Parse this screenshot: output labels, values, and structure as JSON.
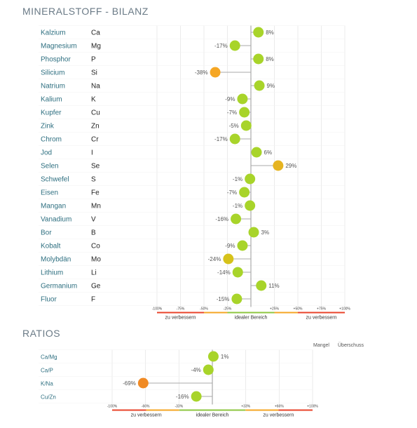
{
  "titles": {
    "main": "MINERALSTOFF - BILANZ",
    "ratios": "RATIOS"
  },
  "colors": {
    "green": "#a8d42a",
    "yellow": "#d6c21a",
    "orange": "#f5a623",
    "deep_orange": "#f08a24",
    "zone_red": "#e8432a",
    "zone_orange": "#f5a623",
    "zone_green": "#8cc63f",
    "label": "#2e6f80",
    "grid": "#e6e6e6"
  },
  "chart_data": [
    {
      "type": "dot",
      "title": "MINERALSTOFF - BILANZ",
      "xlim": [
        -100,
        100
      ],
      "ticks": [
        "-100%",
        "-75%",
        "-50%",
        "-25%",
        "",
        "+25%",
        "+50%",
        "+75%",
        "+100%"
      ],
      "zones": [
        "zu verbessern",
        "idealer Bereich",
        "zu verbessern"
      ],
      "rows": [
        {
          "name": "Kalzium",
          "symbol": "Ca",
          "value": 8,
          "label": "8%",
          "color": "#a8d42a"
        },
        {
          "name": "Magnesium",
          "symbol": "Mg",
          "value": -17,
          "label": "-17%",
          "color": "#a8d42a"
        },
        {
          "name": "Phosphor",
          "symbol": "P",
          "value": 8,
          "label": "8%",
          "color": "#a8d42a"
        },
        {
          "name": "Silicium",
          "symbol": "Si",
          "value": -38,
          "label": "-38%",
          "color": "#f5a623"
        },
        {
          "name": "Natrium",
          "symbol": "Na",
          "value": 9,
          "label": "9%",
          "color": "#a8d42a"
        },
        {
          "name": "Kalium",
          "symbol": "K",
          "value": -9,
          "label": "-9%",
          "color": "#a8d42a"
        },
        {
          "name": "Kupfer",
          "symbol": "Cu",
          "value": -7,
          "label": "-7%",
          "color": "#a8d42a"
        },
        {
          "name": "Zink",
          "symbol": "Zn",
          "value": -5,
          "label": "-5%",
          "color": "#a8d42a"
        },
        {
          "name": "Chrom",
          "symbol": "Cr",
          "value": -17,
          "label": "-17%",
          "color": "#a8d42a"
        },
        {
          "name": "Jod",
          "symbol": "I",
          "value": 6,
          "label": "6%",
          "color": "#a8d42a"
        },
        {
          "name": "Selen",
          "symbol": "Se",
          "value": 29,
          "label": "29%",
          "color": "#e6b421"
        },
        {
          "name": "Schwefel",
          "symbol": "S",
          "value": -1,
          "label": "-1%",
          "color": "#a8d42a"
        },
        {
          "name": "Eisen",
          "symbol": "Fe",
          "value": -7,
          "label": "-7%",
          "color": "#a8d42a"
        },
        {
          "name": "Mangan",
          "symbol": "Mn",
          "value": -1,
          "label": "-1%",
          "color": "#a8d42a"
        },
        {
          "name": "Vanadium",
          "symbol": "V",
          "value": -16,
          "label": "-16%",
          "color": "#a8d42a"
        },
        {
          "name": "Bor",
          "symbol": "B",
          "value": 3,
          "label": "3%",
          "color": "#a8d42a"
        },
        {
          "name": "Kobalt",
          "symbol": "Co",
          "value": -9,
          "label": "-9%",
          "color": "#a8d42a"
        },
        {
          "name": "Molybdän",
          "symbol": "Mo",
          "value": -24,
          "label": "-24%",
          "color": "#d6c21a"
        },
        {
          "name": "Lithium",
          "symbol": "Li",
          "value": -14,
          "label": "-14%",
          "color": "#a8d42a"
        },
        {
          "name": "Germanium",
          "symbol": "Ge",
          "value": 11,
          "label": "11%",
          "color": "#a8d42a"
        },
        {
          "name": "Fluor",
          "symbol": "F",
          "value": -15,
          "label": "-15%",
          "color": "#a8d42a"
        }
      ]
    },
    {
      "type": "dot",
      "title": "RATIOS",
      "xlim": [
        -100,
        100
      ],
      "header": [
        "Mangel",
        "Überschuss"
      ],
      "ticks": [
        "-100%",
        "-66%",
        "-33%",
        "",
        "+33%",
        "+66%",
        "+100%"
      ],
      "zones": [
        "zu verbessern",
        "idealer Bereich",
        "zu verbessern"
      ],
      "rows": [
        {
          "name": "Ca/Mg",
          "value": 1,
          "label": "1%",
          "color": "#a8d42a"
        },
        {
          "name": "Ca/P",
          "value": -4,
          "label": "-4%",
          "color": "#a8d42a"
        },
        {
          "name": "K/Na",
          "value": -69,
          "label": "-69%",
          "color": "#f08a24"
        },
        {
          "name": "Cu/Zn",
          "value": -16,
          "label": "-16%",
          "color": "#a8d42a"
        }
      ]
    }
  ]
}
